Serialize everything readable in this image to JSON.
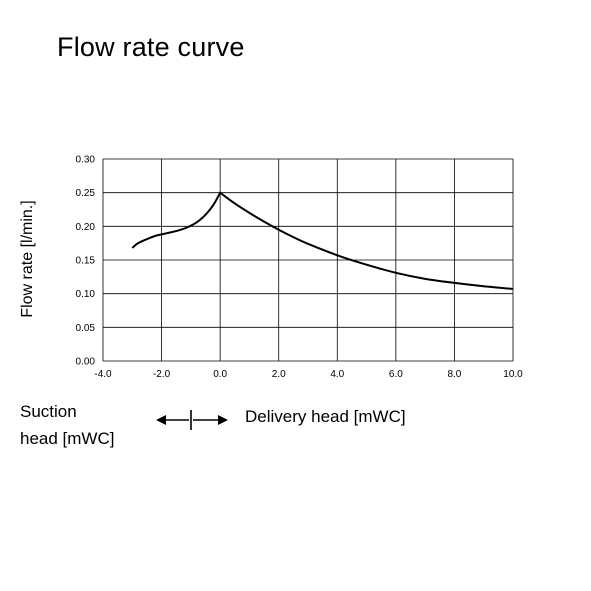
{
  "title": "Flow rate curve",
  "suction_label_line1": "Suction",
  "suction_label_line2": "head [mWC]",
  "delivery_label": "Delivery head [mWC]",
  "chart_data": {
    "type": "line",
    "title": "Flow rate curve",
    "ylabel": "Flow rate [l/min.]",
    "xlim": [
      -4.0,
      10.0
    ],
    "ylim": [
      0.0,
      0.3
    ],
    "grid": true,
    "x_ticks": [
      "-4.0",
      "-2.0",
      "0.0",
      "2.0",
      "4.0",
      "6.0",
      "8.0",
      "10.0"
    ],
    "y_ticks": [
      "0.00",
      "0.05",
      "0.10",
      "0.15",
      "0.20",
      "0.25",
      "0.30"
    ],
    "series": [
      {
        "x": [
          -3.0,
          -2.8,
          -2.5,
          -2.2,
          -2.0,
          -1.8,
          -1.5,
          -1.2,
          -1.0,
          -0.8,
          -0.6,
          -0.4,
          -0.2,
          0.0,
          0.5,
          1.0,
          1.5,
          2.0,
          2.5,
          3.0,
          4.0,
          5.0,
          6.0,
          7.0,
          8.0,
          9.0,
          10.0
        ],
        "y": [
          0.168,
          0.175,
          0.181,
          0.186,
          0.188,
          0.19,
          0.193,
          0.197,
          0.201,
          0.206,
          0.213,
          0.222,
          0.234,
          0.25,
          0.234,
          0.22,
          0.207,
          0.195,
          0.184,
          0.174,
          0.157,
          0.143,
          0.131,
          0.122,
          0.116,
          0.111,
          0.107
        ]
      }
    ]
  }
}
